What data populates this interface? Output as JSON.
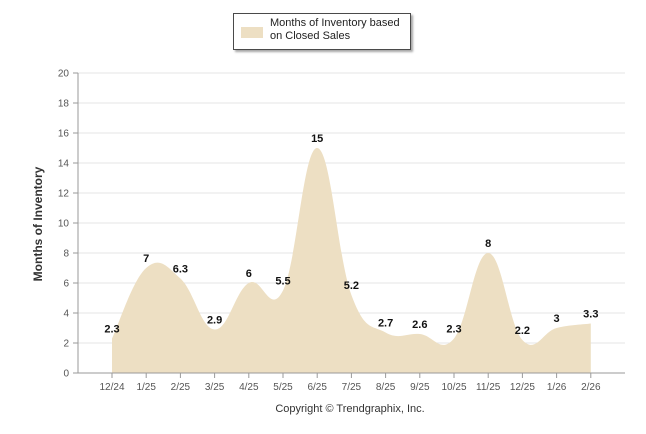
{
  "chart_data": {
    "type": "area",
    "title": "",
    "categories": [
      "12/24",
      "1/25",
      "2/25",
      "3/25",
      "4/25",
      "5/25",
      "6/25",
      "7/25",
      "8/25",
      "9/25",
      "10/25",
      "11/25",
      "12/25",
      "1/26",
      "2/26"
    ],
    "series": [
      {
        "name": "Months of Inventory based on Closed Sales",
        "values": [
          2.3,
          7,
          6.3,
          2.9,
          6,
          5.5,
          15,
          5.2,
          2.7,
          2.6,
          2.3,
          8,
          2.2,
          3,
          3.3
        ],
        "labels": [
          "2.3",
          "7",
          "6.3",
          "2.9",
          "6",
          "5.5",
          "15",
          "5.2",
          "2.7",
          "2.6",
          "2.3",
          "8",
          "2.2",
          "3",
          "3.3"
        ]
      }
    ],
    "xlabel": "",
    "ylabel": "Months of Inventory",
    "ylim": [
      0,
      20
    ],
    "yticks": [
      "0",
      "2",
      "4",
      "6",
      "8",
      "10",
      "12",
      "14",
      "16",
      "18",
      "20"
    ],
    "grid": true,
    "legend": "top-center",
    "colors": {
      "fill": "#eddfc3",
      "grid": "#e4e4e4",
      "axis": "#9a9a9a",
      "text": "#333333"
    }
  },
  "legend": {
    "label_line1": "Months of Inventory based",
    "label_line2": "on Closed Sales"
  },
  "footer": {
    "copyright": "Copyright © Trendgraphix, Inc."
  }
}
